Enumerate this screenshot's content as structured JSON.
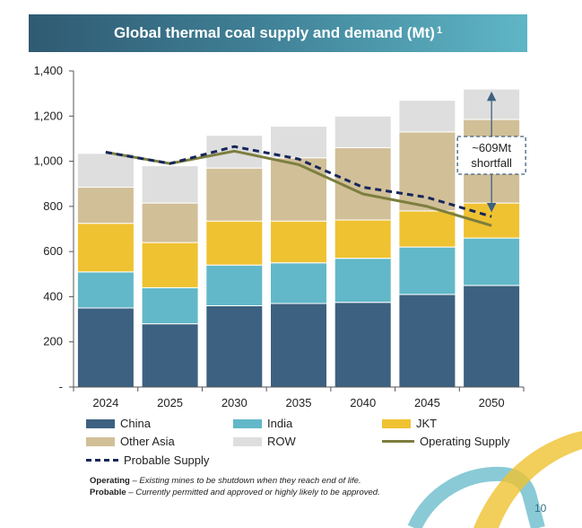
{
  "title": "Global thermal coal supply and demand (Mt)",
  "title_sup": "1",
  "page_number": "10",
  "colors": {
    "China": "#3d6180",
    "India": "#62b8c8",
    "JKT": "#efc231",
    "Other Asia": "#d1bf98",
    "ROW": "#dedede",
    "Operating Supply": "#7c7e3e",
    "Probable Supply": "#16265a"
  },
  "legend": {
    "china": "China",
    "india": "India",
    "jkt": "JKT",
    "other_asia": "Other Asia",
    "row": "ROW",
    "operating": "Operating Supply",
    "probable": "Probable Supply"
  },
  "notes": {
    "operating_label": "Operating",
    "operating_text": " – Existing mines to be shutdown when they reach end of life.",
    "probable_label": "Probable",
    "probable_text": " – Currently permitted and approved or highly likely to be approved."
  },
  "chart_data": {
    "type": "bar",
    "stacked": true,
    "title": "Global thermal coal supply and demand (Mt)",
    "categories": [
      "2024",
      "2025",
      "2030",
      "2035",
      "2040",
      "2045",
      "2050"
    ],
    "ylim": [
      0,
      1400
    ],
    "yticks": [
      {
        "value": 0,
        "label": "-"
      },
      {
        "value": 200,
        "label": "200"
      },
      {
        "value": 400,
        "label": "400"
      },
      {
        "value": 600,
        "label": "600"
      },
      {
        "value": 800,
        "label": "800"
      },
      {
        "value": 1000,
        "label": "1,000"
      },
      {
        "value": 1200,
        "label": "1,200"
      },
      {
        "value": 1400,
        "label": "1,400"
      }
    ],
    "series": [
      {
        "name": "China",
        "values": [
          350,
          280,
          360,
          370,
          375,
          410,
          450
        ]
      },
      {
        "name": "India",
        "values": [
          160,
          160,
          180,
          180,
          195,
          210,
          210
        ]
      },
      {
        "name": "JKT",
        "values": [
          215,
          200,
          195,
          185,
          170,
          160,
          155
        ]
      },
      {
        "name": "Other Asia",
        "values": [
          160,
          175,
          235,
          280,
          320,
          350,
          370
        ]
      },
      {
        "name": "ROW",
        "values": [
          150,
          165,
          145,
          140,
          140,
          140,
          135
        ]
      }
    ],
    "lines": [
      {
        "name": "Operating Supply",
        "style": "solid",
        "values": [
          1040,
          990,
          1045,
          985,
          855,
          800,
          715
        ]
      },
      {
        "name": "Probable Supply",
        "style": "dashed",
        "values": [
          1040,
          990,
          1065,
          1010,
          885,
          840,
          755
        ]
      }
    ],
    "annotation": {
      "line1": "~609Mt",
      "line2": "shortfall",
      "category": "2050",
      "from": 1320,
      "to": 755
    }
  }
}
